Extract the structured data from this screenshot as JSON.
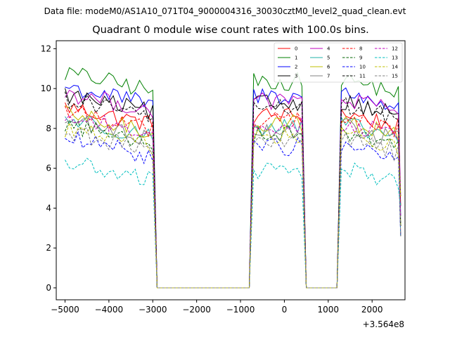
{
  "chart_data": {
    "type": "line",
    "suptitle": "Data file: modeM0/AS1A10_071T04_9000004316_30030cztM0_level2_quad_clean.evt",
    "title": "Quadrant 0 module wise count rates with 100.0s bins.",
    "xlabel": "",
    "ylabel": "",
    "x_offset_label": "+3.564e8",
    "xlim": [
      -5200,
      2750
    ],
    "ylim": [
      -0.6,
      12.4
    ],
    "xticks": [
      -5000,
      -4000,
      -3000,
      -2000,
      -1000,
      0,
      1000,
      2000
    ],
    "xtick_labels": [
      "−5000",
      "−4000",
      "−3000",
      "−2000",
      "−1000",
      "0",
      "1000",
      "2000"
    ],
    "yticks": [
      0,
      2,
      4,
      6,
      8,
      10,
      12
    ],
    "legend_position": "upper-right",
    "bin_size_s": 100,
    "segments": [
      {
        "start": -5000,
        "end": -3000,
        "ramp_down": -2900
      },
      {
        "start": -700,
        "end": 400,
        "ramp_up": -800,
        "ramp_down": 500
      },
      {
        "start": 1300,
        "end": 2600,
        "ramp_up": 1200
      }
    ],
    "zero_ranges": [
      [
        -2900,
        -800
      ],
      [
        500,
        1200
      ]
    ],
    "series": [
      {
        "name": "0",
        "color": "#ff0000",
        "dash": "solid",
        "level": 8.6
      },
      {
        "name": "1",
        "color": "#008000",
        "dash": "solid",
        "level": 10.3
      },
      {
        "name": "2",
        "color": "#0000ff",
        "dash": "solid",
        "level": 9.6
      },
      {
        "name": "3",
        "color": "#000000",
        "dash": "solid",
        "level": 9.2
      },
      {
        "name": "4",
        "color": "#bf00bf",
        "dash": "solid",
        "level": 9.3
      },
      {
        "name": "5",
        "color": "#20b2aa",
        "dash": "solid",
        "level": 8.0
      },
      {
        "name": "6",
        "color": "#bfbf00",
        "dash": "solid",
        "level": 8.2
      },
      {
        "name": "7",
        "color": "#808080",
        "dash": "solid",
        "level": 7.9
      },
      {
        "name": "8",
        "color": "#ff0000",
        "dash": "dashed",
        "level": 8.4
      },
      {
        "name": "9",
        "color": "#006400",
        "dash": "dashed",
        "level": 7.7
      },
      {
        "name": "10",
        "color": "#0000ff",
        "dash": "dashed",
        "level": 7.0
      },
      {
        "name": "11",
        "color": "#000000",
        "dash": "dashed",
        "level": 9.0
      },
      {
        "name": "12",
        "color": "#bf00bf",
        "dash": "dashed",
        "level": 8.1
      },
      {
        "name": "13",
        "color": "#00bfbf",
        "dash": "dashed",
        "level": 5.8
      },
      {
        "name": "14",
        "color": "#bfbf00",
        "dash": "dashed",
        "level": 7.5
      },
      {
        "name": "15",
        "color": "#808080",
        "dash": "dashed",
        "level": 7.3
      }
    ]
  }
}
